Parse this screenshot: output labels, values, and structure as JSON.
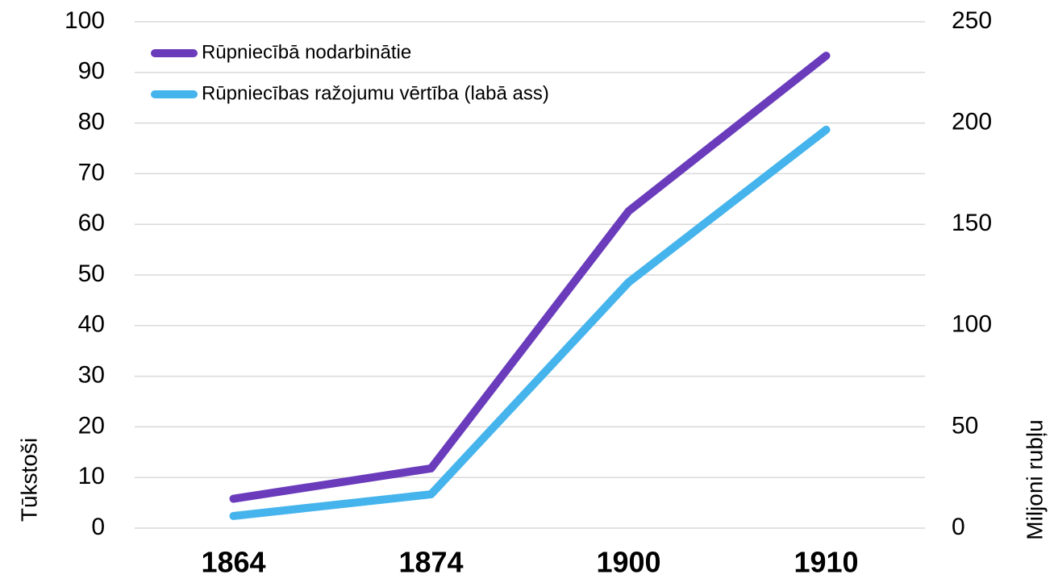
{
  "chart_data": {
    "type": "line",
    "categories": [
      "1864",
      "1874",
      "1900",
      "1910"
    ],
    "series": [
      {
        "name": "Rūpniecībā nodarbinātie",
        "color": "#6a3cbc",
        "values": [
          5.8,
          11.8,
          62.6,
          93.3
        ]
      },
      {
        "name": "Rūpniecības ražojumu vērtība (labā ass)",
        "color": "#45b4ec",
        "axis": "y2",
        "values": [
          6,
          16.7,
          121.4,
          196.7
        ]
      }
    ],
    "ylabel": "Tūkstoši",
    "y2label": "Miljoni rubļu",
    "ylim": [
      0,
      100
    ],
    "yticks": [
      0,
      10,
      20,
      30,
      40,
      50,
      60,
      70,
      80,
      90,
      100
    ],
    "y2lim": [
      0,
      250
    ],
    "y2ticks": [
      0,
      50,
      100,
      150,
      200,
      250
    ],
    "grid": true,
    "legend": "upper left"
  }
}
